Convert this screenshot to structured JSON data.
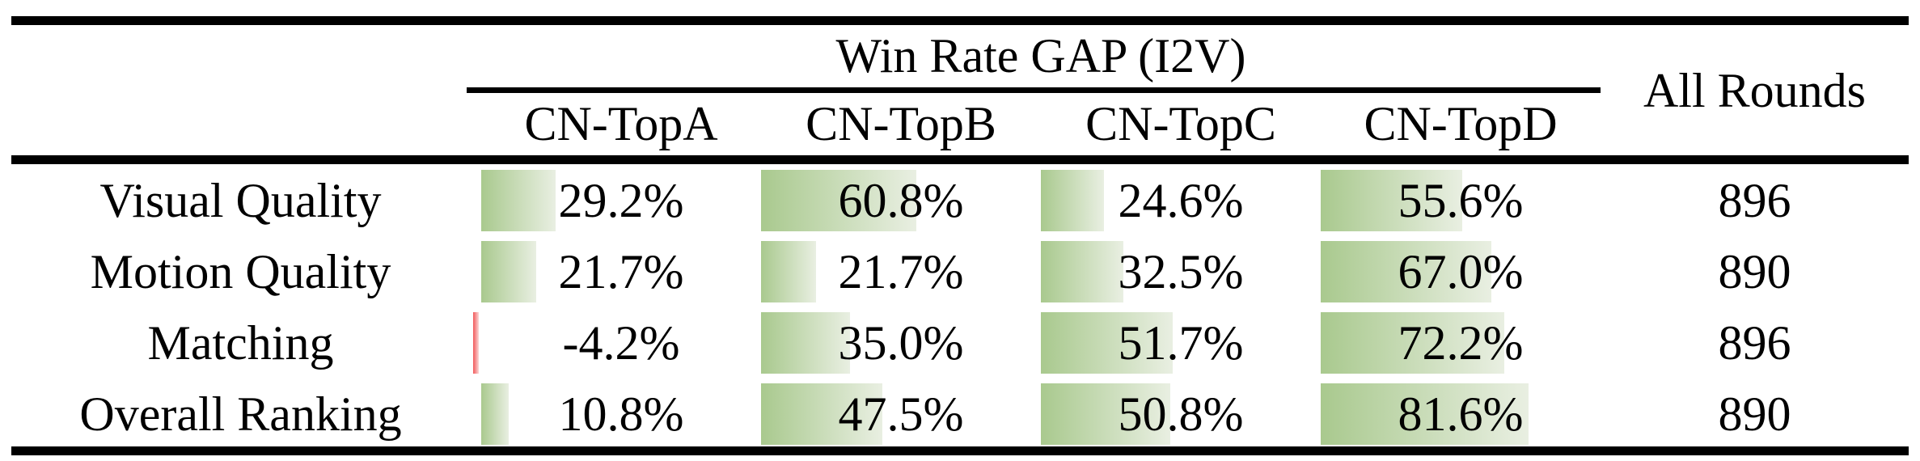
{
  "table": {
    "title": "Win Rate GAP (I2V)",
    "all_rounds_header": "All Rounds",
    "columns": [
      "CN-TopA",
      "CN-TopB",
      "CN-TopC",
      "CN-TopD"
    ],
    "rows": [
      {
        "label": "Visual Quality",
        "values": [
          29.2,
          60.8,
          24.6,
          55.6
        ],
        "display": [
          "29.2%",
          "60.8%",
          "24.6%",
          "55.6%"
        ],
        "all_rounds": "896"
      },
      {
        "label": "Motion Quality",
        "values": [
          21.7,
          21.7,
          32.5,
          67.0
        ],
        "display": [
          "21.7%",
          "21.7%",
          "32.5%",
          "67.0%"
        ],
        "all_rounds": "890"
      },
      {
        "label": "Matching",
        "values": [
          -4.2,
          35.0,
          51.7,
          72.2
        ],
        "display": [
          "-4.2%",
          "35.0%",
          "51.7%",
          "72.2%"
        ],
        "all_rounds": "896"
      },
      {
        "label": "Overall Ranking",
        "values": [
          10.8,
          47.5,
          50.8,
          81.6
        ],
        "display": [
          "10.8%",
          "47.5%",
          "50.8%",
          "81.6%"
        ],
        "all_rounds": "890"
      }
    ]
  },
  "colors": {
    "bar_green_left": "#a9c98e",
    "bar_green_right": "#e9efe2",
    "bar_red_left": "#f2595a",
    "bar_red_right": "#fbd7d7",
    "rule_color": "#000000"
  },
  "chart_data": {
    "type": "table",
    "title": "Win Rate GAP (I2V)",
    "categories": [
      "Visual Quality",
      "Motion Quality",
      "Matching",
      "Overall Ranking"
    ],
    "series": [
      {
        "name": "CN-TopA",
        "values": [
          29.2,
          21.7,
          -4.2,
          10.8
        ]
      },
      {
        "name": "CN-TopB",
        "values": [
          60.8,
          21.7,
          35.0,
          47.5
        ]
      },
      {
        "name": "CN-TopC",
        "values": [
          24.6,
          32.5,
          51.7,
          50.8
        ]
      },
      {
        "name": "CN-TopD",
        "values": [
          55.6,
          67.0,
          72.2,
          81.6
        ]
      }
    ],
    "all_rounds": [
      896,
      890,
      896,
      890
    ],
    "unit": "%"
  }
}
